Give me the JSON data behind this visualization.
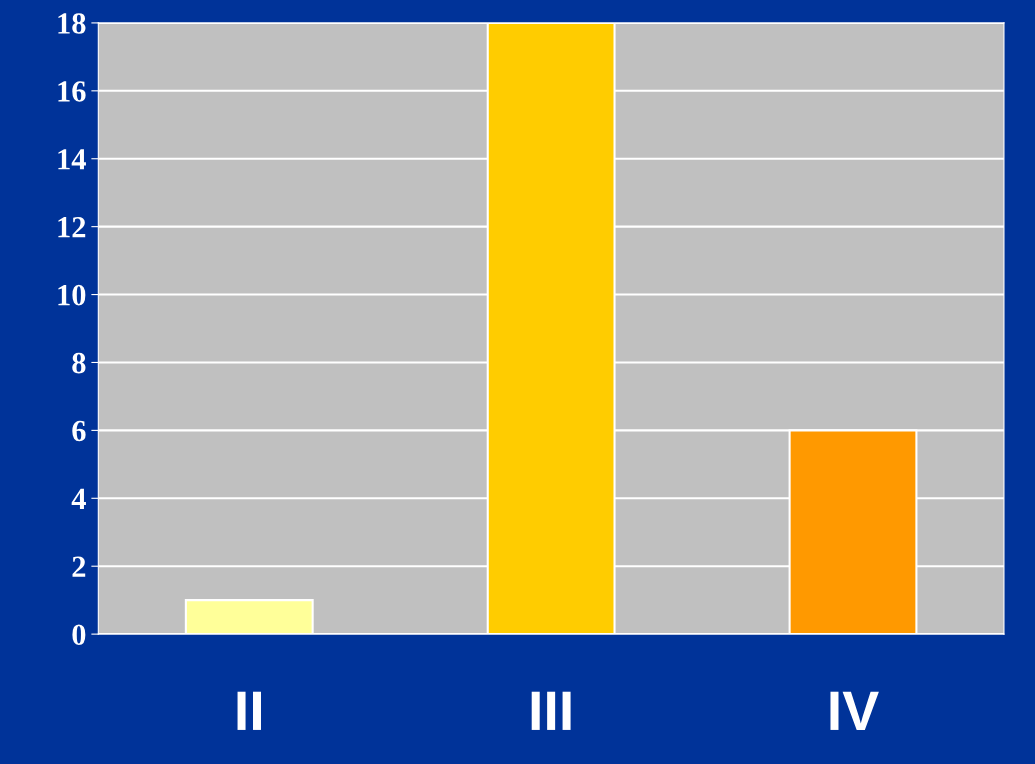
{
  "chart_data": {
    "type": "bar",
    "categories": [
      "II",
      "III",
      "IV"
    ],
    "values": [
      1,
      18,
      6
    ],
    "colors": [
      "#ffff99",
      "#ffcc00",
      "#ff9900"
    ],
    "ylim": [
      0,
      18
    ],
    "yticks": [
      0,
      2,
      4,
      6,
      8,
      10,
      12,
      14,
      16,
      18
    ],
    "grid": "y",
    "legend": false
  }
}
